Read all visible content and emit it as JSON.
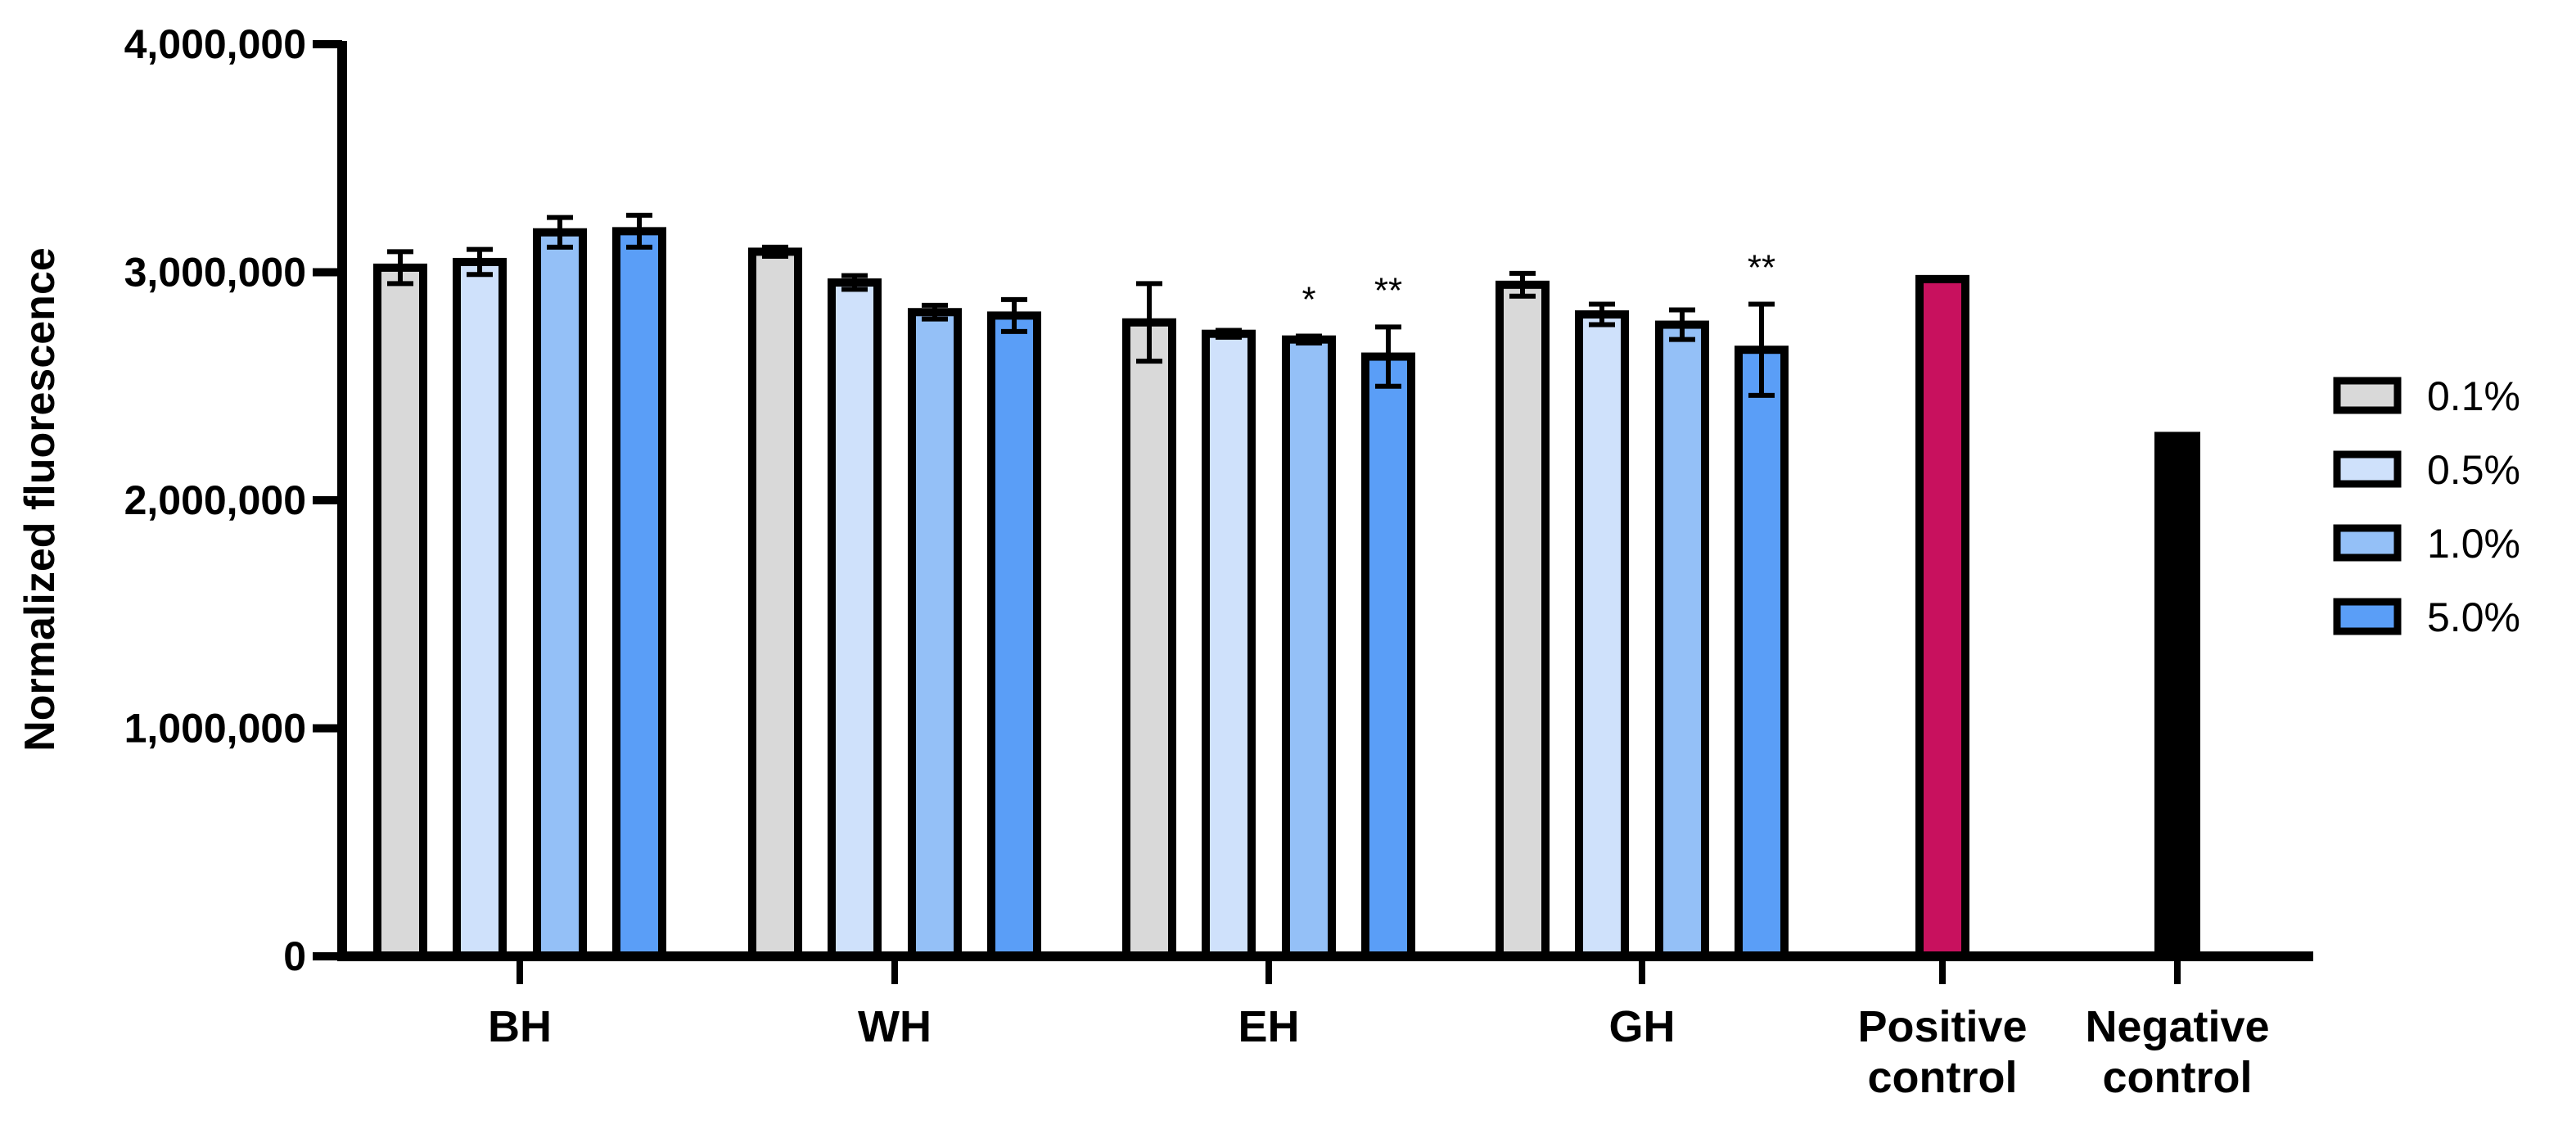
{
  "chart_data": {
    "type": "bar",
    "ylabel": "Normalized fluorescence",
    "ylim": [
      0,
      4000000
    ],
    "yticks": [
      0,
      1000000,
      2000000,
      3000000,
      4000000
    ],
    "ytick_labels": [
      "0",
      "1,000,000",
      "2,000,000",
      "3,000,000",
      "4,000,000"
    ],
    "legend_position": "right",
    "legend": [
      {
        "label": "0.1%",
        "color": "#d9d9d9"
      },
      {
        "label": "0.5%",
        "color": "#cfe1fb"
      },
      {
        "label": "1.0%",
        "color": "#94c0f7"
      },
      {
        "label": "5.0%",
        "color": "#5a9ef7"
      }
    ],
    "groups": [
      {
        "label": [
          "BH"
        ],
        "bars": [
          {
            "series": "0.1%",
            "value": 3020000,
            "error": 70000,
            "annotation": ""
          },
          {
            "series": "0.5%",
            "value": 3045000,
            "error": 55000,
            "annotation": ""
          },
          {
            "series": "1.0%",
            "value": 3175000,
            "error": 65000,
            "annotation": ""
          },
          {
            "series": "5.0%",
            "value": 3180000,
            "error": 70000,
            "annotation": ""
          }
        ]
      },
      {
        "label": [
          "WH"
        ],
        "bars": [
          {
            "series": "0.1%",
            "value": 3090000,
            "error": 20000,
            "annotation": ""
          },
          {
            "series": "0.5%",
            "value": 2955000,
            "error": 30000,
            "annotation": ""
          },
          {
            "series": "1.0%",
            "value": 2825000,
            "error": 30000,
            "annotation": ""
          },
          {
            "series": "5.0%",
            "value": 2810000,
            "error": 70000,
            "annotation": ""
          }
        ]
      },
      {
        "label": [
          "EH"
        ],
        "bars": [
          {
            "series": "0.1%",
            "value": 2780000,
            "error": 170000,
            "annotation": ""
          },
          {
            "series": "0.5%",
            "value": 2730000,
            "error": 15000,
            "annotation": ""
          },
          {
            "series": "1.0%",
            "value": 2705000,
            "error": 15000,
            "annotation": "*"
          },
          {
            "series": "5.0%",
            "value": 2630000,
            "error": 130000,
            "annotation": "**"
          }
        ]
      },
      {
        "label": [
          "GH"
        ],
        "bars": [
          {
            "series": "0.1%",
            "value": 2945000,
            "error": 50000,
            "annotation": ""
          },
          {
            "series": "0.5%",
            "value": 2815000,
            "error": 45000,
            "annotation": ""
          },
          {
            "series": "1.0%",
            "value": 2770000,
            "error": 65000,
            "annotation": ""
          },
          {
            "series": "5.0%",
            "value": 2660000,
            "error": 200000,
            "annotation": "**"
          }
        ]
      },
      {
        "label": [
          "Positive",
          "control"
        ],
        "bars": [
          {
            "series": "Positive control",
            "value": 2970000,
            "error": 0,
            "annotation": "",
            "color": "#c8115e"
          }
        ]
      },
      {
        "label": [
          "Negative",
          "control"
        ],
        "bars": [
          {
            "series": "Negative control",
            "value": 2300000,
            "error": 0,
            "annotation": "",
            "color": "#000000"
          }
        ]
      }
    ]
  }
}
